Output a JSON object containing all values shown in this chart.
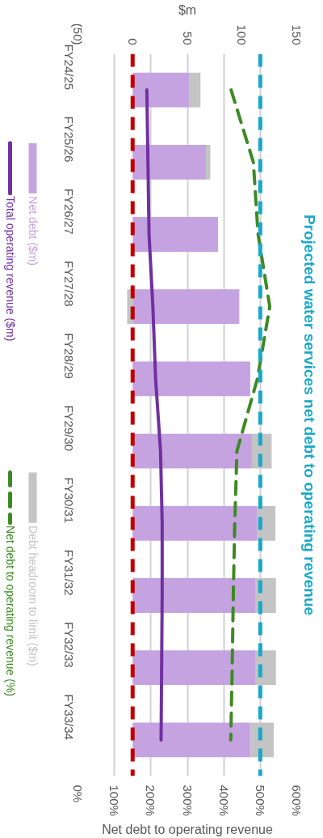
{
  "chart_data": {
    "type": "bar",
    "orientation": "horizontal",
    "stacked": true,
    "title": "Projected water services net debt to operating revenue",
    "categories": [
      "FY24/25",
      "FY25/26",
      "FY26/27",
      "FY27/28",
      "FY28/29",
      "FY29/30",
      "FY30/31",
      "FY31/32",
      "FY32/33",
      "FY33/34"
    ],
    "xlabel": "Net debt to operating revenue",
    "xlim": [
      0,
      600
    ],
    "xticks": [
      {
        "value": 0,
        "label": "0%"
      },
      {
        "value": 100,
        "label": "100%"
      },
      {
        "value": 200,
        "label": "200%"
      },
      {
        "value": 300,
        "label": "300%"
      },
      {
        "value": 400,
        "label": "400%"
      },
      {
        "value": 500,
        "label": "500%"
      },
      {
        "value": 600,
        "label": "600%"
      }
    ],
    "x2label": "$m",
    "x2lim": [
      -50,
      150
    ],
    "x2ticks": [
      {
        "value": -50,
        "label": "(50)"
      },
      0,
      50,
      100,
      150
    ],
    "series": [
      {
        "name": "Net debt ($m)",
        "color": "#c5a3e0",
        "axis": "x2",
        "values": [
          52,
          67,
          78,
          97.5,
          107.5,
          109,
          113.5,
          112,
          112,
          108
        ]
      },
      {
        "name": "Debt headroom to limit ($m)",
        "color": "#c4c4c4",
        "axis": "x2",
        "values": [
          10,
          4,
          0,
          -5,
          0,
          18,
          17,
          19,
          19,
          21
        ]
      },
      {
        "name": "Total operating revenue ($m)",
        "type": "line",
        "color": "#7030a0",
        "axis": "x2",
        "values": [
          13,
          14,
          15,
          18.5,
          21,
          25.5,
          27,
          27,
          26.5,
          26
        ]
      },
      {
        "name": "Net debt to operating revenue (%)",
        "type": "line",
        "line_style": "dashed",
        "color": "#3d8a24",
        "values": [
          420,
          481,
          494,
          526,
          492,
          436,
          430,
          426,
          423,
          419
        ]
      }
    ],
    "ref_lines": [
      {
        "axis": "x",
        "value": 150,
        "color": "#c00000",
        "line_style": "dashed"
      },
      {
        "axis": "x",
        "value": 500,
        "color": "#1ba8c8",
        "line_style": "dashed"
      }
    ],
    "grid": "x",
    "legend": "left"
  }
}
